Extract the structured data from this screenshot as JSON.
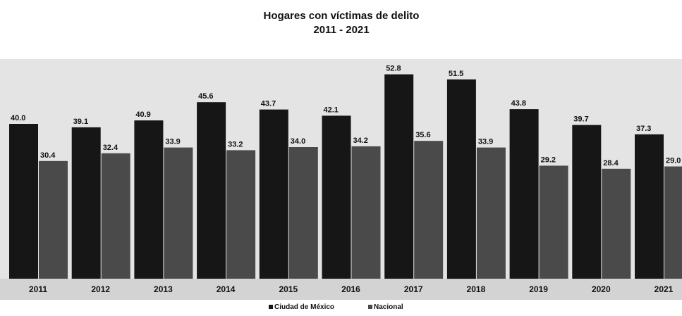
{
  "chart_data": {
    "type": "bar",
    "title": "Hogares con víctimas de delito",
    "subtitle": "2011 - 2021",
    "xlabel": "",
    "ylabel": "",
    "categories": [
      "2011",
      "2012",
      "2013",
      "2014",
      "2015",
      "2016",
      "2017",
      "2018",
      "2019",
      "2020",
      "2021"
    ],
    "series": [
      {
        "name": "Ciudad de México",
        "color": "#161616",
        "values": [
          40.0,
          39.1,
          40.9,
          45.6,
          43.7,
          42.1,
          52.8,
          51.5,
          43.8,
          39.7,
          37.3
        ],
        "labels": [
          "40.0",
          "39.1",
          "40.9",
          "45.6",
          "43.7",
          "42.1",
          "52.8",
          "51.5",
          "43.8",
          "39.7",
          "37.3"
        ]
      },
      {
        "name": "Nacional",
        "color": "#4a4a4a",
        "values": [
          30.4,
          32.4,
          33.9,
          33.2,
          34.0,
          34.2,
          35.6,
          33.9,
          29.2,
          28.4,
          29.0
        ],
        "labels": [
          "30.4",
          "32.4",
          "33.9",
          "33.2",
          "34.0",
          "34.2",
          "35.6",
          "33.9",
          "29.2",
          "28.4",
          "29.0"
        ]
      }
    ],
    "ylim": [
      0,
      55
    ],
    "grid": false,
    "legend_position": "bottom-center",
    "plot_background": "#e4e4e4",
    "axis_band_color": "#d3d3d3"
  }
}
